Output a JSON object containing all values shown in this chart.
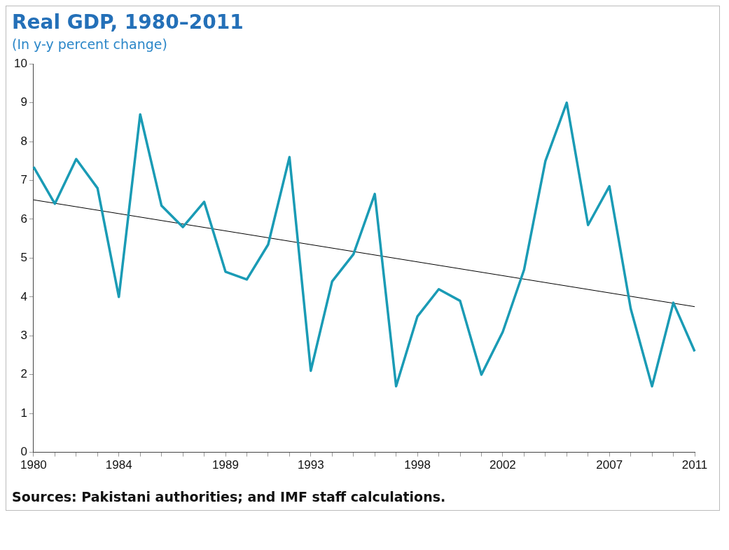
{
  "chart_data": {
    "type": "line",
    "title": "Real GDP, 1980–2011",
    "subtitle": "(In y-y percent change)",
    "categories": [
      "1980",
      null,
      null,
      null,
      "1984",
      null,
      null,
      null,
      null,
      "1989",
      null,
      null,
      null,
      "1993",
      null,
      null,
      null,
      null,
      "1998",
      null,
      null,
      null,
      "2002",
      null,
      null,
      null,
      null,
      "2007",
      null,
      null,
      null,
      "2011"
    ],
    "series": [
      {
        "color": "#1a9bb5",
        "values": [
          7.35,
          6.4,
          7.55,
          6.8,
          4.0,
          8.7,
          6.35,
          5.8,
          6.45,
          4.65,
          4.45,
          5.35,
          7.6,
          2.1,
          4.4,
          5.1,
          6.65,
          1.7,
          3.5,
          4.2,
          3.9,
          2.0,
          3.1,
          4.7,
          7.5,
          9.0,
          5.85,
          6.85,
          3.7,
          1.7,
          3.85,
          2.6
        ]
      },
      {
        "type": "line",
        "color": "#000000",
        "values": [
          6.5,
          null,
          null,
          null,
          null,
          null,
          null,
          null,
          null,
          null,
          null,
          null,
          null,
          null,
          null,
          null,
          null,
          null,
          null,
          null,
          null,
          null,
          null,
          null,
          null,
          null,
          null,
          null,
          null,
          null,
          null,
          3.75
        ]
      }
    ],
    "ylim": [
      0,
      10
    ],
    "yticks": [
      0,
      1,
      2,
      3,
      4,
      5,
      6,
      7,
      8,
      9,
      10
    ],
    "grid": false,
    "legend": false,
    "marker": "none",
    "annotations": [
      "Sources: Pakistani authorities; and IMF staff calculations."
    ]
  }
}
